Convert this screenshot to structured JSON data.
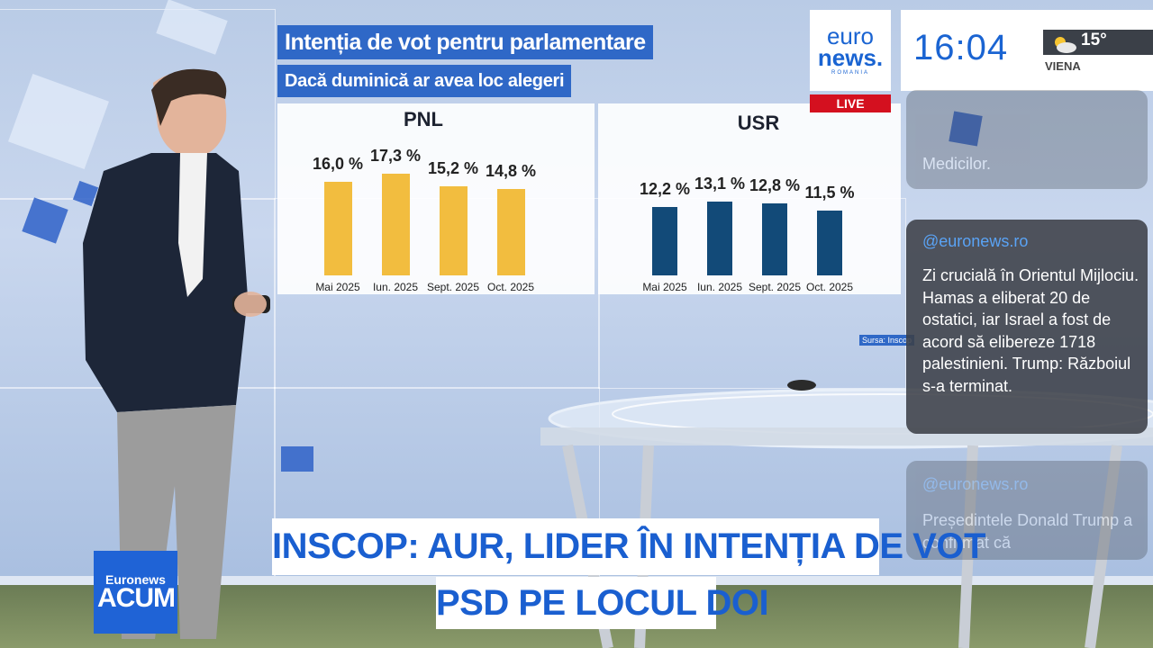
{
  "broadcaster": {
    "logo_line1": "euro",
    "logo_line2": "news.",
    "logo_region": "ROMANIA",
    "live_label": "LIVE",
    "time": "16:04",
    "temperature": "15°",
    "city": "VIENA",
    "weather_icon": "partly-cloudy-icon"
  },
  "chart_header": {
    "title": "Intenția de vot pentru parlamentare",
    "subtitle": "Dacă duminică ar avea loc alegeri",
    "source": "Sursa: Inscop"
  },
  "chart_data": [
    {
      "type": "bar",
      "title": "PNL",
      "categories": [
        "Mai 2025",
        "Iun. 2025",
        "Sept. 2025",
        "Oct. 2025"
      ],
      "values": [
        16.0,
        17.3,
        15.2,
        14.8
      ],
      "value_labels": [
        "16,0 %",
        "17,3 %",
        "15,2 %",
        "14,8 %"
      ],
      "color": "#f2bd3f"
    },
    {
      "type": "bar",
      "title": "USR",
      "categories": [
        "Mai 2025",
        "Iun. 2025",
        "Sept. 2025",
        "Oct. 2025"
      ],
      "values": [
        12.2,
        13.1,
        12.8,
        11.5
      ],
      "value_labels": [
        "12,2 %",
        "13,1 %",
        "12,8 %",
        "11,5 %"
      ],
      "color": "#124a78"
    }
  ],
  "feed": {
    "top_partial_text": "Medicilor.",
    "post1_handle": "@euronews.ro",
    "post1_text": "Zi crucială în Orientul Mijlociu. Hamas a eliberat 20 de ostatici, iar Israel a fost de acord să elibereze 1718 palestinieni. Trump: Războiul s-a terminat.",
    "post2_handle": "@euronews.ro",
    "post2_text": "Președintele Donald Trump a confirmat că"
  },
  "lower_third": {
    "line1": "INSCOP: AUR, LIDER ÎN INTENȚIA DE VOT",
    "line2": "PSD PE LOCUL DOI",
    "program_top": "Euronews",
    "program_bottom": "ACUM"
  }
}
